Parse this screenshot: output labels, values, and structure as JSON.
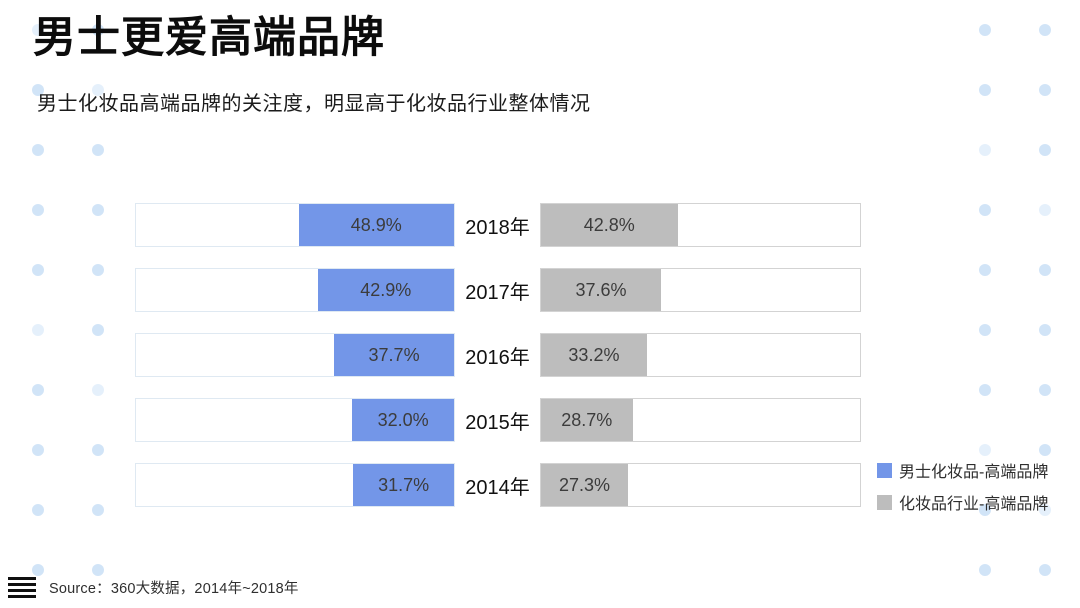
{
  "title": "男士更爱高端品牌",
  "subtitle": "男士化妆品高端品牌的关注度，明显高于化妆品行业整体情况",
  "source": "Source：360大数据，2014年~2018年",
  "colors": {
    "male_series": "#7396E8",
    "industry_series": "#BDBDBD",
    "decorative_dot": "#CFE3F7",
    "left_box_border": "#DFE9F2",
    "right_box_border": "#D3D3D3"
  },
  "legend": [
    {
      "label": "男士化妆品-高端品牌",
      "color": "#7396E8"
    },
    {
      "label": "化妆品行业-高端品牌",
      "color": "#BDBDBD"
    }
  ],
  "chart_data": {
    "type": "bar",
    "variant": "horizontal-tornado",
    "title": "男士更爱高端品牌",
    "subtitle": "男士化妆品高端品牌的关注度，明显高于化妆品行业整体情况",
    "categories": [
      "2018年",
      "2017年",
      "2016年",
      "2015年",
      "2014年"
    ],
    "series": [
      {
        "name": "男士化妆品-高端品牌",
        "side": "left",
        "color": "#7396E8",
        "values": [
          48.9,
          42.9,
          37.7,
          32.0,
          31.7
        ]
      },
      {
        "name": "化妆品行业-高端品牌",
        "side": "right",
        "color": "#BDBDBD",
        "values": [
          42.8,
          37.6,
          33.2,
          28.7,
          27.3
        ]
      }
    ],
    "value_labels": {
      "male": [
        "48.9%",
        "42.9%",
        "37.7%",
        "32.0%",
        "31.7%"
      ],
      "industry": [
        "42.8%",
        "37.6%",
        "33.2%",
        "28.7%",
        "27.3%"
      ]
    },
    "xlim": [
      0,
      100
    ],
    "grid": false,
    "legend_position": "bottom-right"
  }
}
